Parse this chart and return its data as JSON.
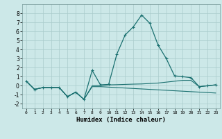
{
  "xlabel": "Humidex (Indice chaleur)",
  "background_color": "#cce8e8",
  "grid_color": "#aacccc",
  "line_color": "#1a7070",
  "xlim": [
    -0.5,
    23.5
  ],
  "ylim": [
    -2.5,
    9.0
  ],
  "x_ticks": [
    0,
    1,
    2,
    3,
    4,
    5,
    6,
    7,
    8,
    9,
    10,
    11,
    12,
    13,
    14,
    15,
    16,
    17,
    18,
    19,
    20,
    21,
    22,
    23
  ],
  "y_ticks": [
    -2,
    -1,
    0,
    1,
    2,
    3,
    4,
    5,
    6,
    7,
    8
  ],
  "series1_x": [
    0,
    1,
    2,
    3,
    4,
    5,
    6,
    7,
    8,
    9,
    10,
    11,
    12,
    13,
    14,
    15,
    16,
    17,
    18,
    19,
    20,
    21,
    22,
    23
  ],
  "series1_y": [
    0.5,
    -0.4,
    -0.2,
    -0.2,
    -0.2,
    -1.2,
    -0.7,
    -1.5,
    1.7,
    0.1,
    0.15,
    3.5,
    5.6,
    6.5,
    7.8,
    6.9,
    4.5,
    3.0,
    1.1,
    1.0,
    0.9,
    -0.1,
    0.0,
    0.1
  ],
  "series2_x": [
    0,
    1,
    2,
    3,
    4,
    5,
    6,
    7,
    8,
    9,
    10,
    11,
    12,
    13,
    14,
    15,
    16,
    17,
    18,
    19,
    20,
    21,
    22,
    23
  ],
  "series2_y": [
    0.5,
    -0.4,
    -0.2,
    -0.2,
    -0.2,
    -1.2,
    -0.7,
    -1.5,
    0.0,
    0.05,
    0.1,
    0.12,
    0.15,
    0.18,
    0.2,
    0.25,
    0.3,
    0.4,
    0.5,
    0.6,
    0.6,
    -0.1,
    0.0,
    0.1
  ],
  "series3_x": [
    0,
    1,
    2,
    3,
    4,
    5,
    6,
    7,
    8,
    9,
    10,
    11,
    12,
    13,
    14,
    15,
    16,
    17,
    18,
    19,
    20,
    21,
    22,
    23
  ],
  "series3_y": [
    0.5,
    -0.4,
    -0.2,
    -0.2,
    -0.2,
    -1.2,
    -0.7,
    -1.5,
    -0.1,
    -0.1,
    -0.15,
    -0.2,
    -0.25,
    -0.3,
    -0.35,
    -0.4,
    -0.45,
    -0.5,
    -0.55,
    -0.6,
    -0.65,
    -0.7,
    -0.75,
    -0.8
  ]
}
